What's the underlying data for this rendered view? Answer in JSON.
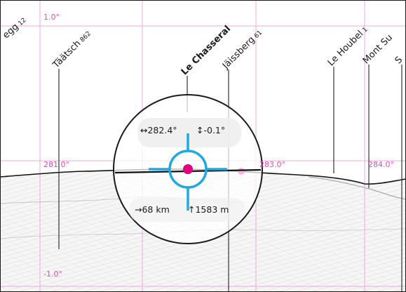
{
  "grid": {
    "elevation_labels": {
      "top": "1.0°",
      "bottom": "-1.0°"
    },
    "azimuth_labels": {
      "a281": "281.0°",
      "a283": "283.0°",
      "a284": "284.0°"
    }
  },
  "peaks": {
    "p0": {
      "name": "egg",
      "elevation": "12"
    },
    "p1": {
      "name": "Täätsch",
      "elevation": "862"
    },
    "p2": {
      "name": "Le Chasseral",
      "elevation": ""
    },
    "p3": {
      "name": "Jäissberg",
      "elevation": "61"
    },
    "p4": {
      "name": "Le Houbel",
      "elevation": "1"
    },
    "p5": {
      "name": "Mont Su",
      "elevation": ""
    },
    "p6": {
      "name": "S",
      "elevation": ""
    }
  },
  "reticle": {
    "azimuth": "282.4°",
    "altitude": "-0.1°",
    "distance": "68 km",
    "height": "1583 m"
  },
  "colors": {
    "grid": "#f0a8dc",
    "grid_label": "#e64bb0",
    "reticle": "#1fa9e0",
    "target": "#e3007d",
    "ridge": "#111111",
    "leader": "#333333"
  }
}
